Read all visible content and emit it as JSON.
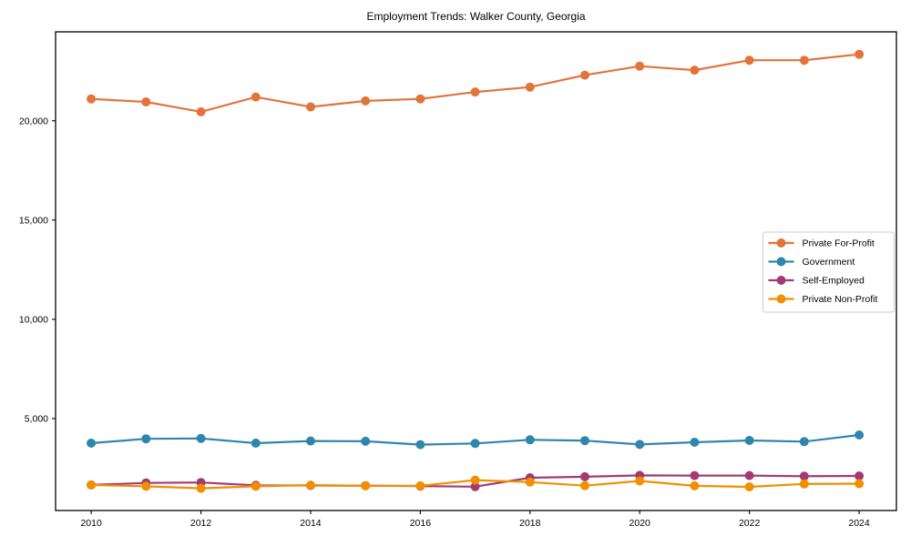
{
  "chart_data": {
    "type": "line",
    "title": "Employment Trends: Walker County, Georgia",
    "xlabel": "",
    "ylabel": "",
    "grid": false,
    "legend_position": "center-right",
    "xlim": [
      2009.35,
      2024.68
    ],
    "ylim": [
      370,
      24480
    ],
    "x": [
      2010,
      2011,
      2012,
      2013,
      2014,
      2015,
      2016,
      2017,
      2018,
      2019,
      2020,
      2021,
      2022,
      2023,
      2024
    ],
    "x_ticks": [
      2010,
      2012,
      2014,
      2016,
      2018,
      2020,
      2022,
      2024
    ],
    "x_tick_labels": [
      "2010",
      "2012",
      "2014",
      "2016",
      "2018",
      "2020",
      "2022",
      "2024"
    ],
    "y_ticks": [
      5000,
      10000,
      15000,
      20000
    ],
    "y_tick_labels": [
      "5,000",
      "10,000",
      "15,000",
      "20,000"
    ],
    "series": [
      {
        "name": "Private For-Profit",
        "color": "#E2743B",
        "values": [
          21100,
          20950,
          20450,
          21200,
          20700,
          21000,
          21100,
          21450,
          21700,
          22300,
          22750,
          22550,
          23050,
          23050,
          23350
        ]
      },
      {
        "name": "Government",
        "color": "#2E86AB",
        "values": [
          3760,
          3980,
          4000,
          3760,
          3870,
          3860,
          3690,
          3750,
          3930,
          3890,
          3700,
          3810,
          3900,
          3840,
          4175
        ]
      },
      {
        "name": "Self-Employed",
        "color": "#A23B72",
        "values": [
          1660,
          1760,
          1780,
          1640,
          1630,
          1620,
          1600,
          1570,
          2020,
          2070,
          2140,
          2130,
          2130,
          2100,
          2110
        ]
      },
      {
        "name": "Private Non-Profit",
        "color": "#F18F01",
        "values": [
          1660,
          1590,
          1490,
          1590,
          1650,
          1610,
          1610,
          1900,
          1800,
          1620,
          1860,
          1610,
          1560,
          1710,
          1720
        ]
      }
    ]
  },
  "colors": {
    "spine": "#000000",
    "legend_border": "#cccccc",
    "background": "#ffffff"
  }
}
